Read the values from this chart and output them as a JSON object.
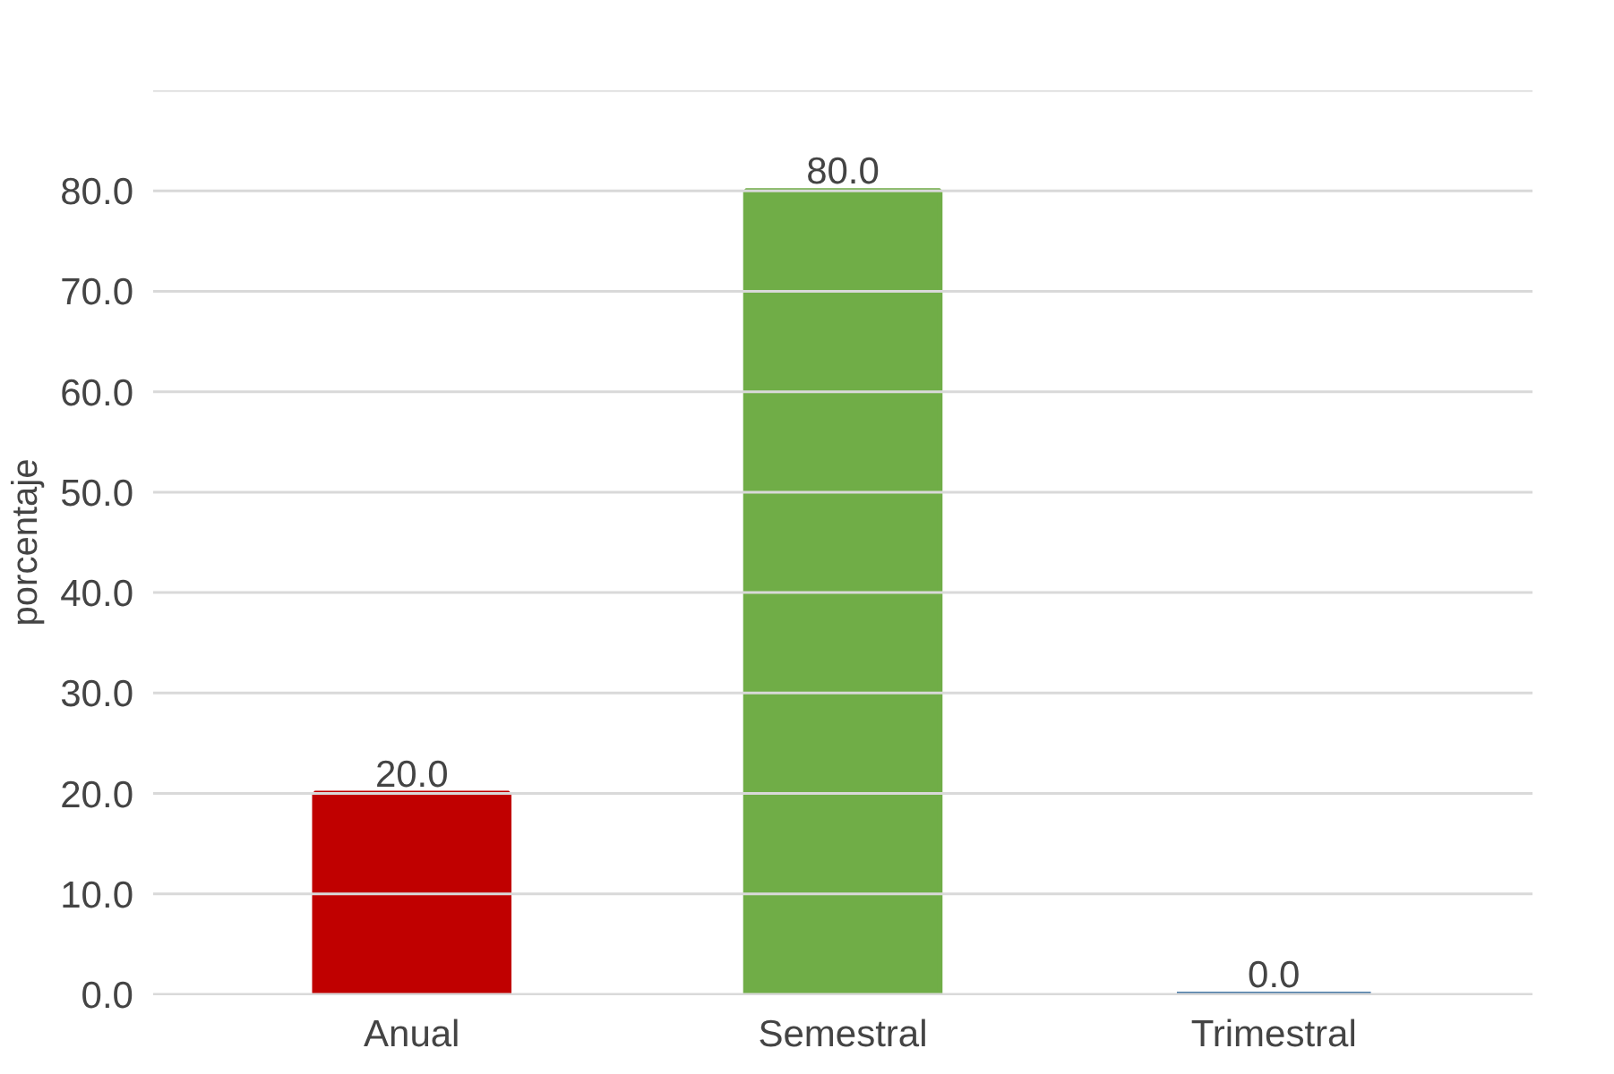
{
  "chart_data": {
    "type": "bar",
    "ylabel": "porcentaje",
    "categories": [
      "Anual",
      "Semestral",
      "Trimestral"
    ],
    "values": [
      20,
      80,
      0
    ],
    "colors": [
      "#c00000",
      "#70ad47",
      "#4a7ba7"
    ],
    "value_labels": [
      "20.0",
      "80.0",
      "0.0"
    ],
    "ylim": [
      0,
      90
    ],
    "yticks": [
      {
        "value": 0,
        "label": "0.0"
      },
      {
        "value": 10,
        "label": "10.0"
      },
      {
        "value": 20,
        "label": "20.0"
      },
      {
        "value": 30,
        "label": "30.0"
      },
      {
        "value": 40,
        "label": "40.0"
      },
      {
        "value": 50,
        "label": "50.0"
      },
      {
        "value": 60,
        "label": "60.0"
      },
      {
        "value": 70,
        "label": "70.0"
      },
      {
        "value": 80,
        "label": "80.0"
      },
      {
        "value": 90,
        "label": null
      }
    ],
    "grid": "y"
  }
}
